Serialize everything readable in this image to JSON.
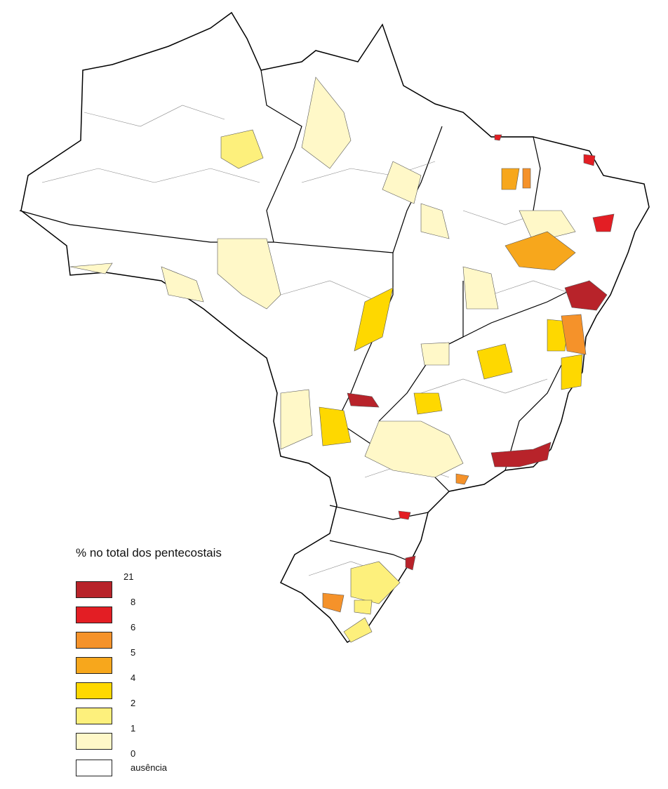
{
  "legend": {
    "title": "% no total dos pentecostais",
    "breaks": [
      "21",
      "8",
      "6",
      "5",
      "4",
      "2",
      "1",
      "0"
    ],
    "classes": [
      {
        "color": "#b8232a"
      },
      {
        "color": "#e31e24"
      },
      {
        "color": "#f5922a"
      },
      {
        "color": "#f7a71c"
      },
      {
        "color": "#fed800"
      },
      {
        "color": "#fdf07c"
      },
      {
        "color": "#fff8c8"
      }
    ],
    "absence": {
      "label": "ausência",
      "color": "#ffffff"
    }
  }
}
